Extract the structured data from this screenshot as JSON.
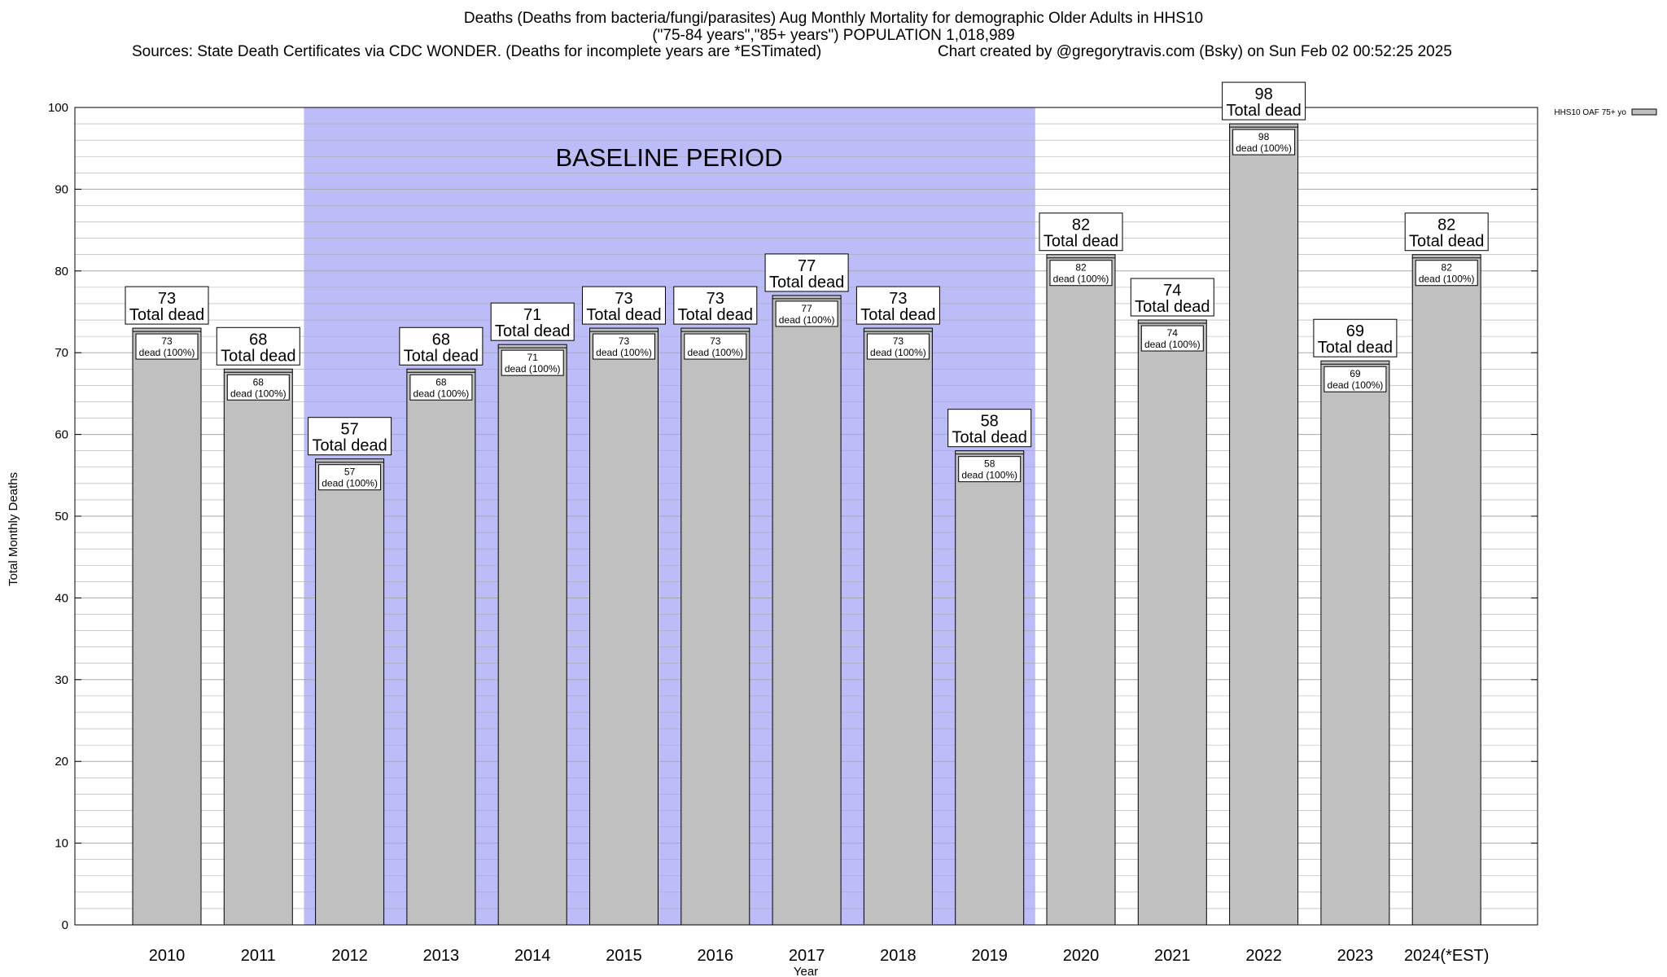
{
  "header": {
    "title_line1": "Deaths (Deaths from bacteria/fungi/parasites) Aug Monthly Mortality for demographic Older Adults in HHS10",
    "title_line2": "(\"75-84 years\",\"85+ years\") POPULATION 1,018,989",
    "sources": "Sources: State Death Certificates via CDC WONDER. (Deaths for incomplete years are *ESTimated)",
    "credit": "Chart created by @gregorytravis.com (Bsky) on Sun Feb 02 00:52:25 2025"
  },
  "chart_data": {
    "type": "bar",
    "xlabel": "Year",
    "ylabel": "Total Monthly Deaths",
    "ylim": [
      0,
      100
    ],
    "yticks": [
      0,
      10,
      20,
      30,
      40,
      50,
      60,
      70,
      80,
      90,
      100
    ],
    "categories": [
      "2010",
      "2011",
      "2012",
      "2013",
      "2014",
      "2015",
      "2016",
      "2017",
      "2018",
      "2019",
      "2020",
      "2021",
      "2022",
      "2023",
      "2024(*EST)"
    ],
    "series": [
      {
        "name": "HHS10 OAF 75+ yo",
        "values": [
          73,
          68,
          57,
          68,
          71,
          73,
          73,
          77,
          73,
          58,
          82,
          74,
          98,
          69,
          82
        ]
      }
    ],
    "bar_label_top": "Total dead",
    "bar_label_inner": "dead (100%)",
    "baseline": {
      "label": "BASELINE PERIOD",
      "from": "2012",
      "to": "2019"
    },
    "legend_position": "top-right",
    "colors": {
      "bar": "#c0c0c0",
      "baseline": "#bcbcf8",
      "grid": "#aaaaaa"
    }
  }
}
